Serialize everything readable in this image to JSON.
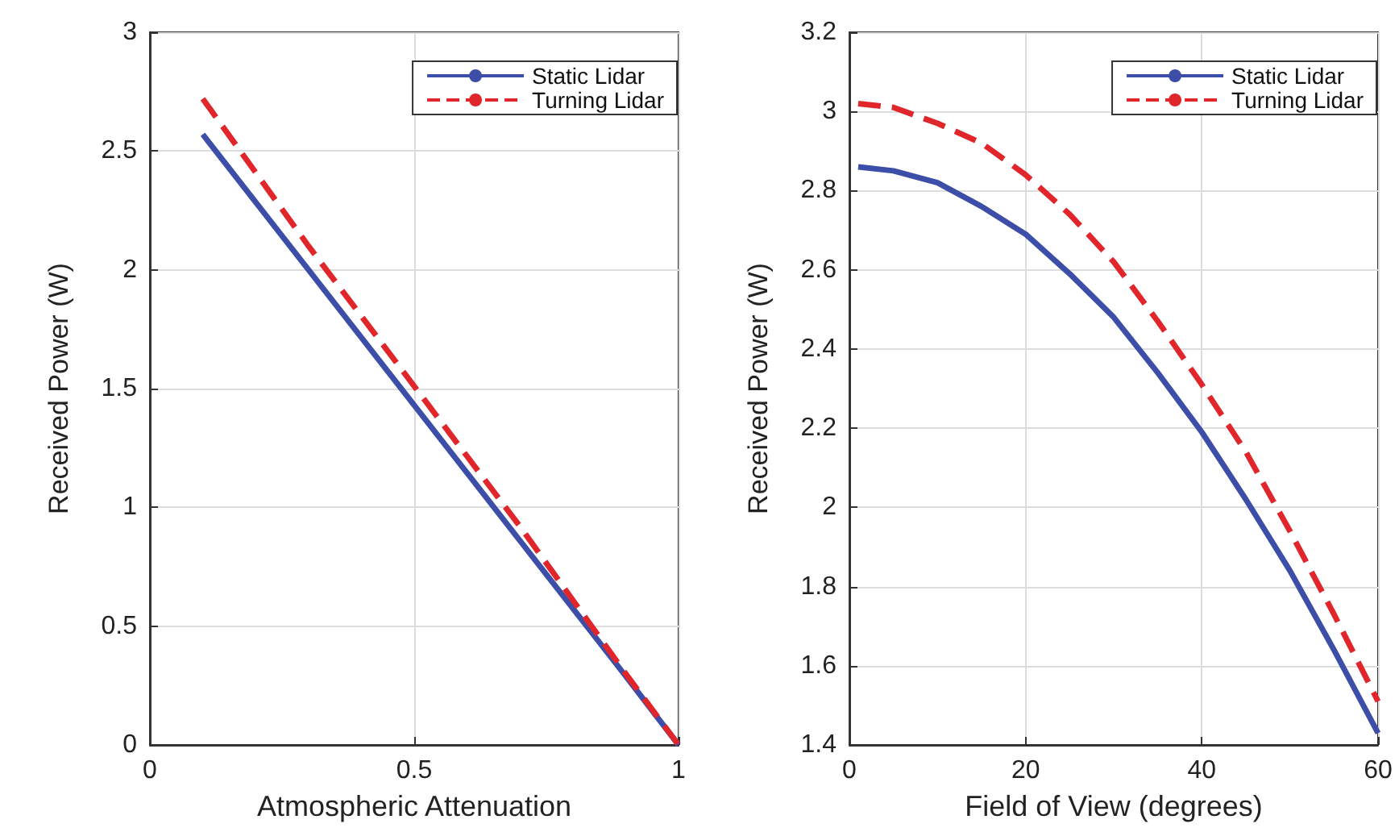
{
  "chart_data": [
    {
      "type": "line",
      "xlabel": "Atmospheric Attenuation",
      "ylabel": "Received Power (W)",
      "xlim": [
        0,
        1
      ],
      "xticks": [
        0,
        0.5,
        1
      ],
      "ylim": [
        0,
        3
      ],
      "yticks": [
        0,
        0.5,
        1,
        1.5,
        2,
        2.5,
        3
      ],
      "grid": true,
      "legend": "top right",
      "marker": "none",
      "series": [
        {
          "name": "Static Lidar",
          "color": "#3c4ea8",
          "line_style": "solid",
          "x": [
            0.1,
            0.3,
            0.5,
            0.7,
            0.9,
            1
          ],
          "values": [
            2.57,
            2.0,
            1.43,
            0.86,
            0.29,
            0
          ]
        },
        {
          "name": "Turning Lidar",
          "color": "#e0262a",
          "line_style": "dashed",
          "x": [
            0.1,
            0.3,
            0.5,
            0.7,
            0.9,
            1
          ],
          "values": [
            2.72,
            2.1,
            1.51,
            0.92,
            0.3,
            0
          ]
        }
      ]
    },
    {
      "type": "line",
      "xlabel": "Field of View (degrees)",
      "ylabel": "Received Power (W)",
      "xlim": [
        0,
        60
      ],
      "xticks": [
        0,
        20,
        40,
        60
      ],
      "ylim": [
        1.4,
        3.2
      ],
      "yticks": [
        1.4,
        1.6,
        1.8,
        2,
        2.2,
        2.4,
        2.6,
        2.8,
        3,
        3.2
      ],
      "grid": true,
      "legend": "top right",
      "marker": "none",
      "series": [
        {
          "name": "Static Lidar",
          "color": "#3c4ea8",
          "line_style": "solid",
          "x": [
            1,
            5,
            10,
            15,
            20,
            25,
            30,
            35,
            40,
            45,
            50,
            55,
            60
          ],
          "values": [
            2.86,
            2.85,
            2.82,
            2.76,
            2.69,
            2.59,
            2.48,
            2.34,
            2.19,
            2.02,
            1.84,
            1.64,
            1.43
          ]
        },
        {
          "name": "Turning Lidar",
          "color": "#e0262a",
          "line_style": "dashed",
          "x": [
            1,
            5,
            10,
            15,
            20,
            25,
            30,
            35,
            40,
            45,
            50,
            55,
            60
          ],
          "values": [
            3.02,
            3.01,
            2.97,
            2.92,
            2.84,
            2.74,
            2.62,
            2.47,
            2.31,
            2.14,
            1.94,
            1.73,
            1.51
          ]
        }
      ]
    }
  ]
}
